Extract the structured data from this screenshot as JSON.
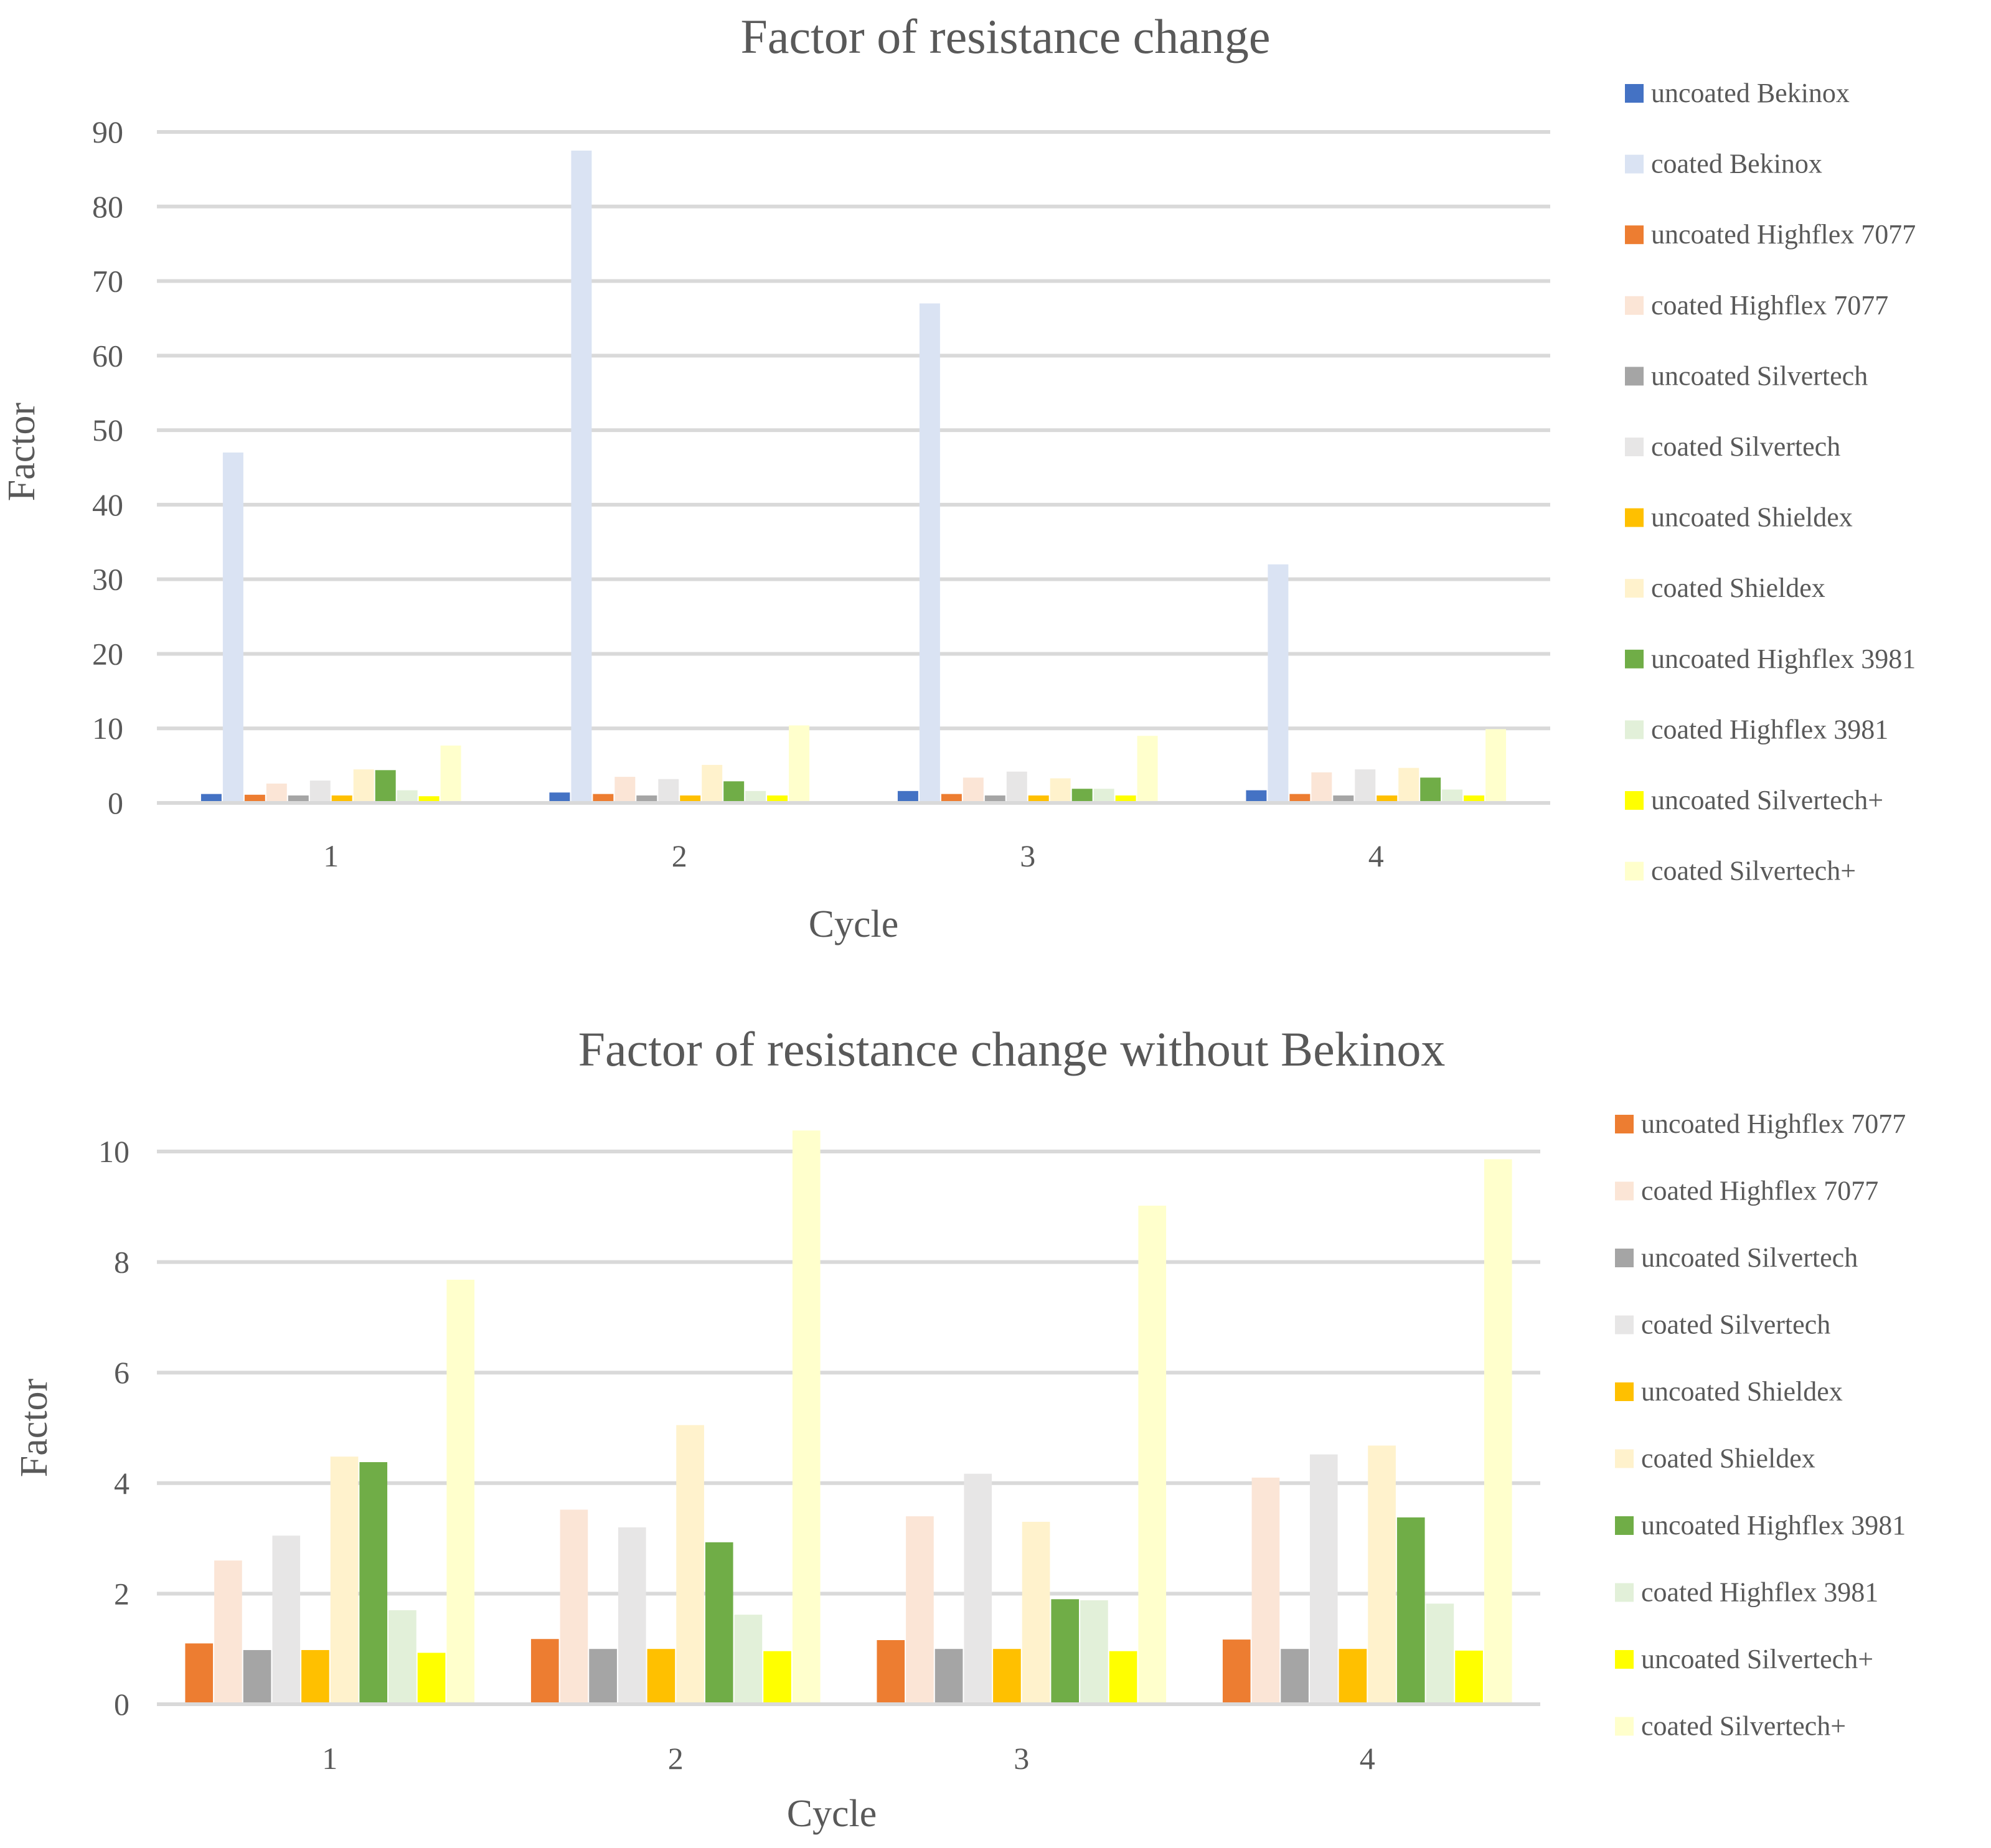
{
  "chart_data": [
    {
      "type": "bar",
      "title": "Factor of resistance change",
      "xlabel": "Cycle",
      "ylabel": "Factor",
      "categories": [
        "1",
        "2",
        "3",
        "4"
      ],
      "ylim": [
        0,
        90
      ],
      "yticks": [
        0,
        10,
        20,
        30,
        40,
        50,
        60,
        70,
        80,
        90
      ],
      "grid": true,
      "legend_position": "right",
      "series": [
        {
          "name": "uncoated Bekinox",
          "color": "#4472C4",
          "values": [
            1.2,
            1.4,
            1.6,
            1.7
          ]
        },
        {
          "name": "coated Bekinox",
          "color": "#DAE3F3",
          "values": [
            47,
            87.5,
            67,
            32
          ]
        },
        {
          "name": "uncoated Highflex 7077",
          "color": "#ED7D31",
          "values": [
            1.1,
            1.2,
            1.2,
            1.2
          ]
        },
        {
          "name": "coated Highflex 7077",
          "color": "#FBE5D6",
          "values": [
            2.6,
            3.5,
            3.4,
            4.1
          ]
        },
        {
          "name": "uncoated Silvertech",
          "color": "#A5A5A5",
          "values": [
            1.0,
            1.0,
            1.0,
            1.0
          ]
        },
        {
          "name": "coated Silvertech",
          "color": "#E7E6E6",
          "values": [
            3.0,
            3.2,
            4.2,
            4.5
          ]
        },
        {
          "name": "uncoated Shieldex",
          "color": "#FFC000",
          "values": [
            1.0,
            1.0,
            1.0,
            1.0
          ]
        },
        {
          "name": "coated Shieldex",
          "color": "#FFF2CC",
          "values": [
            4.5,
            5.1,
            3.3,
            4.7
          ]
        },
        {
          "name": "uncoated Highflex 3981",
          "color": "#70AD47",
          "values": [
            4.4,
            2.9,
            1.9,
            3.4
          ]
        },
        {
          "name": "coated Highflex 3981",
          "color": "#E2F0D9",
          "values": [
            1.7,
            1.6,
            1.9,
            1.8
          ]
        },
        {
          "name": "uncoated Silvertech+",
          "color": "#FFFF00",
          "values": [
            0.9,
            1.0,
            1.0,
            1.0
          ]
        },
        {
          "name": "coated Silvertech+",
          "color": "#FFFFCC",
          "values": [
            7.7,
            10.4,
            9.0,
            9.9
          ]
        }
      ]
    },
    {
      "type": "bar",
      "title": "Factor of resistance change without Bekinox",
      "xlabel": "Cycle",
      "ylabel": "Factor",
      "categories": [
        "1",
        "2",
        "3",
        "4"
      ],
      "ylim": [
        0,
        10
      ],
      "yticks": [
        0,
        2,
        4,
        6,
        8,
        10
      ],
      "grid": true,
      "legend_position": "right",
      "series": [
        {
          "name": "uncoated Highflex 7077",
          "color": "#ED7D31",
          "values": [
            1.1,
            1.18,
            1.16,
            1.17
          ]
        },
        {
          "name": "coated Highflex 7077",
          "color": "#FBE5D6",
          "values": [
            2.6,
            3.52,
            3.4,
            4.1
          ]
        },
        {
          "name": "uncoated Silvertech",
          "color": "#A5A5A5",
          "values": [
            0.98,
            1.0,
            1.0,
            1.0
          ]
        },
        {
          "name": "coated Silvertech",
          "color": "#E7E6E6",
          "values": [
            3.05,
            3.2,
            4.17,
            4.52
          ]
        },
        {
          "name": "uncoated Shieldex",
          "color": "#FFC000",
          "values": [
            0.98,
            1.0,
            1.0,
            1.0
          ]
        },
        {
          "name": "coated Shieldex",
          "color": "#FFF2CC",
          "values": [
            4.48,
            5.05,
            3.3,
            4.68
          ]
        },
        {
          "name": "uncoated Highflex 3981",
          "color": "#70AD47",
          "values": [
            4.38,
            2.93,
            1.9,
            3.38
          ]
        },
        {
          "name": "coated Highflex 3981",
          "color": "#E2F0D9",
          "values": [
            1.7,
            1.62,
            1.88,
            1.82
          ]
        },
        {
          "name": "uncoated Silvertech+",
          "color": "#FFFF00",
          "values": [
            0.93,
            0.96,
            0.96,
            0.97
          ]
        },
        {
          "name": "coated Silvertech+",
          "color": "#FFFFCC",
          "values": [
            7.68,
            10.38,
            9.02,
            9.86
          ]
        }
      ]
    }
  ]
}
